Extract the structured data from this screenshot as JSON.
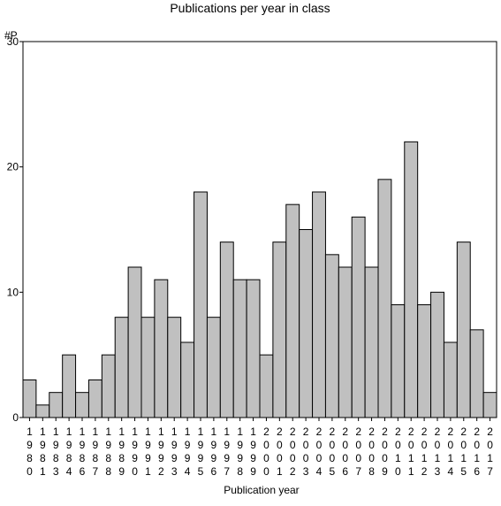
{
  "chart_data": {
    "type": "bar",
    "title": "Publications per year in class",
    "ylabel": "#P",
    "xlabel": "Publication year",
    "ylim": [
      0,
      30
    ],
    "yticks": [
      0,
      10,
      20,
      30
    ],
    "grid": false,
    "bar_color": "#c0c0c0",
    "categories": [
      "1980",
      "1981",
      "1983",
      "1984",
      "1986",
      "1987",
      "1988",
      "1989",
      "1990",
      "1991",
      "1992",
      "1993",
      "1994",
      "1995",
      "1996",
      "1997",
      "1998",
      "1999",
      "2000",
      "2001",
      "2002",
      "2003",
      "2004",
      "2005",
      "2006",
      "2007",
      "2008",
      "2009",
      "2010",
      "2011",
      "2012",
      "2013",
      "2014",
      "2015",
      "2016",
      "2017"
    ],
    "values": [
      3,
      1,
      2,
      5,
      2,
      3,
      5,
      8,
      12,
      8,
      11,
      8,
      6,
      18,
      8,
      14,
      11,
      11,
      5,
      14,
      17,
      15,
      18,
      13,
      12,
      16,
      12,
      19,
      9,
      22,
      9,
      10,
      6,
      14,
      7,
      2
    ]
  }
}
